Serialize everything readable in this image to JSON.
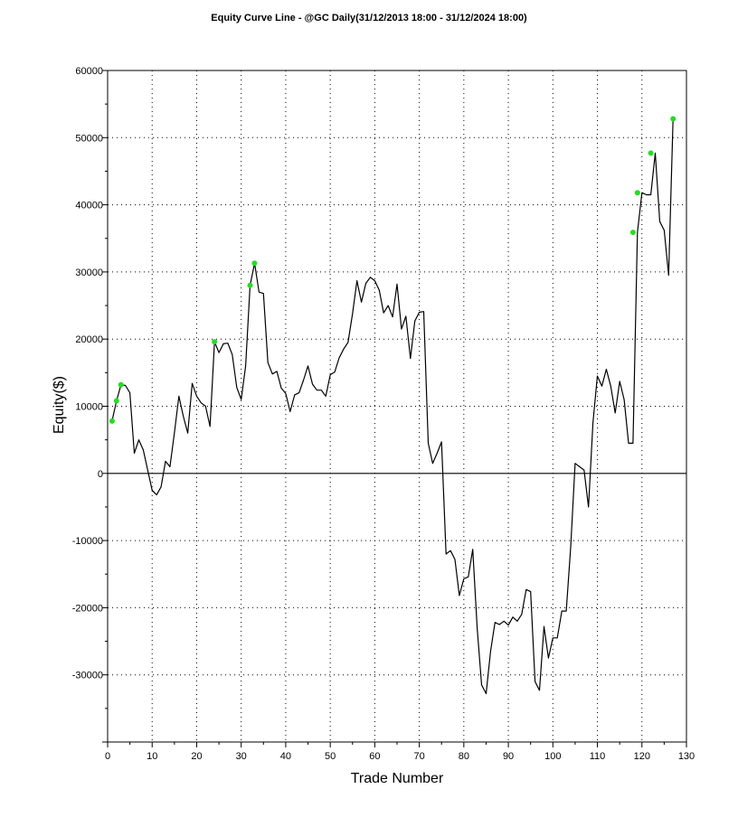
{
  "chart_data": {
    "type": "line",
    "title": "Equity Curve Line - @GC Daily(31/12/2013 18:00 - 31/12/2024 18:00)",
    "xlabel": "Trade Number",
    "ylabel": "Equity($)",
    "xlim": [
      0,
      130
    ],
    "ylim": [
      -40000,
      60000
    ],
    "x_ticks": [
      0,
      10,
      20,
      30,
      40,
      50,
      60,
      70,
      80,
      90,
      100,
      110,
      120,
      130
    ],
    "y_ticks": [
      60000,
      50000,
      40000,
      30000,
      20000,
      10000,
      0,
      -10000,
      -20000,
      -30000
    ],
    "grid": true,
    "line_color": "#000000",
    "highlight_color": "#22dd22",
    "series": [
      {
        "x": [
          1,
          2,
          3,
          4,
          5,
          6,
          7,
          8,
          9,
          10,
          11,
          12,
          13,
          14,
          15,
          16,
          17,
          18,
          19,
          20,
          21,
          22,
          23,
          24,
          25,
          26,
          27,
          28,
          29,
          30,
          31,
          32,
          33,
          34,
          35,
          36,
          37,
          38,
          39,
          40,
          41,
          42,
          43,
          44,
          45,
          46,
          47,
          48,
          49,
          50,
          51,
          52,
          53,
          54,
          55,
          56,
          57,
          58,
          59,
          60,
          61,
          62,
          63,
          64,
          65,
          66,
          67,
          68,
          69,
          70,
          71,
          72,
          73,
          74,
          75,
          76,
          77,
          78,
          79,
          80,
          81,
          82,
          83,
          84,
          85,
          86,
          87,
          88,
          89,
          90,
          91,
          92,
          93,
          94,
          95,
          96,
          97,
          98,
          99,
          100,
          101,
          102,
          103,
          104,
          105,
          106,
          107,
          108,
          109,
          110,
          111,
          112,
          113,
          114,
          115,
          116,
          117,
          118,
          119,
          120,
          121,
          122,
          123,
          124,
          125,
          126,
          127
        ],
        "values": [
          7800,
          10800,
          13200,
          13100,
          12000,
          3000,
          5000,
          3500,
          500,
          -2500,
          -3200,
          -2000,
          1800,
          1000,
          6000,
          11500,
          8500,
          6000,
          13400,
          11500,
          10500,
          10000,
          7000,
          19600,
          18000,
          19300,
          19400,
          17700,
          12800,
          11000,
          16000,
          28000,
          31300,
          27000,
          26800,
          16500,
          14800,
          15200,
          12700,
          11900,
          9200,
          11700,
          12000,
          13900,
          16000,
          13300,
          12400,
          12400,
          11500,
          14700,
          15100,
          17200,
          18500,
          19500,
          23800,
          28700,
          25500,
          28300,
          29200,
          28700,
          27300,
          23900,
          25000,
          23300,
          28200,
          21500,
          23400,
          17100,
          22700,
          24000,
          24100,
          4500,
          1500,
          3000,
          4700,
          -12000,
          -11500,
          -12800,
          -18200,
          -15700,
          -15400,
          -11300,
          -23000,
          -31500,
          -32800,
          -26500,
          -22200,
          -22500,
          -22000,
          -22600,
          -21400,
          -22000,
          -21000,
          -17300,
          -17600,
          -31000,
          -32300,
          -22800,
          -27500,
          -24500,
          -24500,
          -20500,
          -20500,
          -11000,
          1500,
          1000,
          500,
          -5000,
          7500,
          14500,
          13000,
          15500,
          13000,
          9000,
          13700,
          11000,
          4500,
          4500,
          35900,
          41800,
          41500,
          41500,
          47700,
          37500,
          36200,
          29500,
          52800
        ]
      }
    ],
    "highlight_points": [
      {
        "x": 1,
        "y": 7800
      },
      {
        "x": 2,
        "y": 10800
      },
      {
        "x": 3,
        "y": 13200
      },
      {
        "x": 24,
        "y": 19600
      },
      {
        "x": 32,
        "y": 28000
      },
      {
        "x": 33,
        "y": 31300
      },
      {
        "x": 118,
        "y": 35900
      },
      {
        "x": 119,
        "y": 41800
      },
      {
        "x": 122,
        "y": 47700
      },
      {
        "x": 127,
        "y": 52800
      }
    ]
  }
}
